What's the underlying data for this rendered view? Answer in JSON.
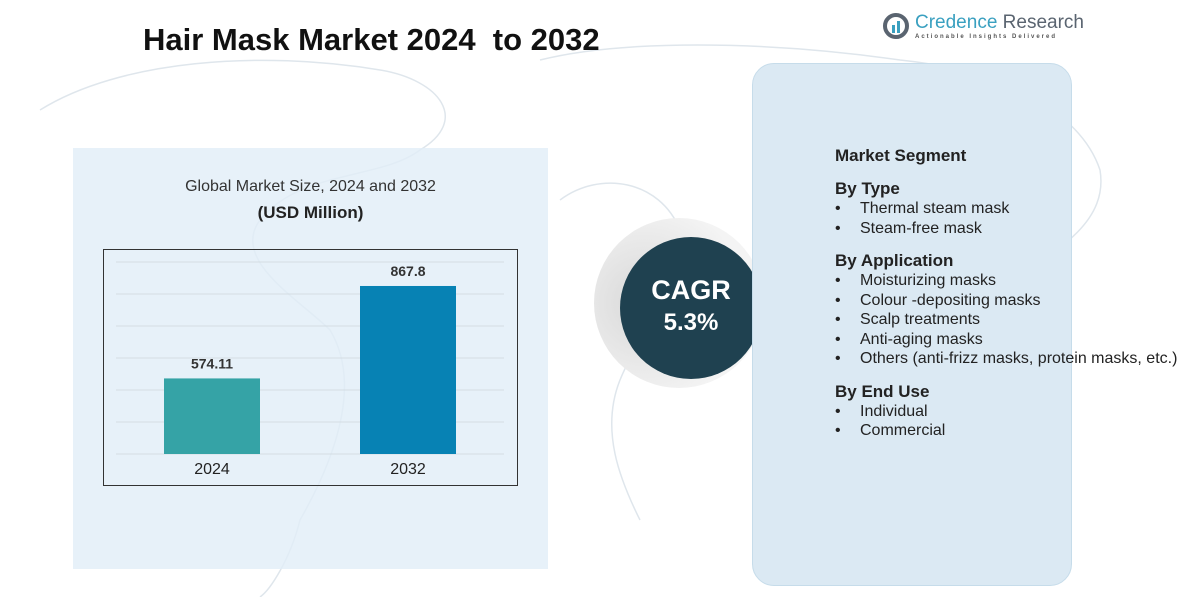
{
  "title": "Hair Mask Market 2024  to 2032",
  "logo": {
    "name_a": "Credence",
    "name_b": " Research",
    "tagline": "Actionable Insights Delivered"
  },
  "chart_data": {
    "type": "bar",
    "title": "Global Market Size, 2024 and 2032",
    "subtitle": "(USD Million)",
    "categories": [
      "2024",
      "2032"
    ],
    "values": [
      574.11,
      867.8
    ],
    "value_labels": [
      "574.11",
      "867.8"
    ],
    "colors": [
      "#35a3a6",
      "#0782b4"
    ],
    "xlabel": "",
    "ylabel": "",
    "ylim": [
      334,
      944
    ],
    "grid": true
  },
  "cagr": {
    "label": "CAGR",
    "value": "5.3%"
  },
  "segments": {
    "heading": "Market Segment",
    "groups": [
      {
        "title": "By Type",
        "items": [
          "Thermal steam mask",
          "Steam-free mask"
        ]
      },
      {
        "title": "By Application",
        "items": [
          "Moisturizing masks",
          "Colour -depositing masks",
          "Scalp treatments",
          "Anti-aging masks",
          "Others (anti-frizz masks, protein masks, etc.)"
        ]
      },
      {
        "title": "By End Use",
        "items": [
          "Individual",
          "Commercial"
        ]
      }
    ]
  }
}
